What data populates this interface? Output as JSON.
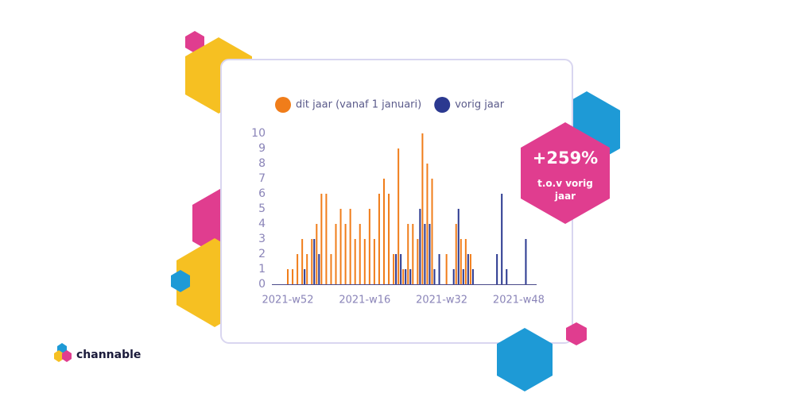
{
  "chart_data": {
    "type": "bar",
    "categories": [
      "2021-w52",
      null,
      null,
      null,
      null,
      null,
      null,
      null,
      null,
      null,
      null,
      null,
      null,
      null,
      null,
      null,
      "2021-w16",
      null,
      null,
      null,
      null,
      null,
      null,
      null,
      null,
      null,
      null,
      null,
      null,
      null,
      null,
      null,
      "2021-w32",
      null,
      null,
      null,
      null,
      null,
      null,
      null,
      null,
      null,
      null,
      null,
      null,
      null,
      null,
      null,
      "2021-w48",
      null
    ],
    "series": [
      {
        "name": "dit jaar (vanaf 1 januari)",
        "color": "#f07d1a",
        "values": [
          1,
          1,
          2,
          3,
          2,
          3,
          4,
          6,
          6,
          2,
          4,
          5,
          4,
          5,
          3,
          4,
          3,
          5,
          3,
          6,
          7,
          6,
          2,
          9,
          1,
          4,
          4,
          3,
          10,
          8,
          7,
          0,
          0,
          2,
          0,
          4,
          3,
          3,
          2,
          0,
          0,
          0,
          0,
          0,
          0,
          0,
          0,
          0,
          0,
          0
        ]
      },
      {
        "name": "vorig jaar",
        "color": "#2b3990",
        "values": [
          0,
          0,
          0,
          1,
          0,
          3,
          2,
          0,
          0,
          0,
          0,
          0,
          0,
          0,
          0,
          0,
          0,
          0,
          0,
          0,
          0,
          0,
          2,
          2,
          1,
          1,
          0,
          5,
          4,
          4,
          1,
          2,
          0,
          0,
          1,
          5,
          1,
          2,
          1,
          0,
          0,
          0,
          0,
          2,
          6,
          1,
          0,
          0,
          0,
          3
        ]
      }
    ],
    "ylim": [
      0,
      10
    ],
    "yticks": [
      0,
      1,
      2,
      3,
      4,
      5,
      6,
      7,
      8,
      9,
      10
    ]
  },
  "callout": {
    "value": "+259%",
    "text": "t.o.v vorig jaar"
  },
  "brand": "channable"
}
